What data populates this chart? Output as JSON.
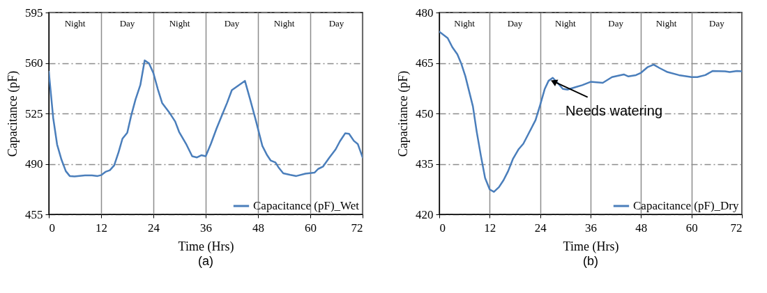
{
  "chart_data": [
    {
      "type": "line",
      "title": "(a)",
      "xlabel": "Time (Hrs)",
      "ylabel": "Capacitance (pF)",
      "xlim": [
        0,
        72
      ],
      "xticks": [
        0,
        12,
        24,
        36,
        48,
        60,
        72
      ],
      "ylim": [
        455,
        595
      ],
      "yticks": [
        455,
        490,
        525,
        560,
        595
      ],
      "grid": true,
      "legend": "bottom right",
      "annotations": [
        "Night",
        "Day",
        "Night",
        "Day",
        "Night",
        "Day"
      ],
      "series": [
        {
          "name": "Capacitance (pF)_Wet",
          "color": "#4a7ebb",
          "x": [
            0,
            1,
            1.9,
            2.9,
            3.9,
            4.8,
            5.9,
            8.3,
            9.9,
            11.2,
            12,
            13,
            14,
            15,
            16,
            16.9,
            18,
            18.9,
            19.9,
            21,
            22,
            23,
            24,
            25,
            26,
            27.6,
            29,
            29.9,
            31.6,
            32.9,
            34,
            35,
            36,
            37.2,
            38.5,
            39.9,
            40.9,
            42,
            45,
            46.2,
            47.5,
            49,
            50.1,
            50.9,
            52,
            52.8,
            53.8,
            55.4,
            56.8,
            58.9,
            61,
            61.8,
            62.9,
            64.4,
            65.8,
            66.8,
            68,
            68.9,
            70,
            70.9,
            72
          ],
          "values": [
            554,
            522,
            503.5,
            493,
            485,
            481.6,
            481.3,
            482,
            482,
            481.6,
            482.2,
            484.5,
            485.6,
            489,
            498,
            507.5,
            511.6,
            523.5,
            534.7,
            544.7,
            561.8,
            559.7,
            553,
            542,
            532.3,
            525.9,
            519.4,
            512.2,
            503.3,
            495.3,
            494.5,
            496,
            495.3,
            504,
            514.6,
            525,
            532.3,
            541.2,
            547.6,
            534.7,
            520.2,
            502.5,
            496,
            492.4,
            491,
            487.2,
            483.5,
            482.4,
            481.6,
            483.2,
            484,
            486.5,
            488.1,
            494.5,
            500,
            505.7,
            511.2,
            510.9,
            506,
            503.8,
            494.5
          ]
        }
      ]
    },
    {
      "type": "line",
      "title": "(b)",
      "xlabel": "Time (Hrs)",
      "ylabel": "Capacitance (pF)",
      "xlim": [
        0,
        72
      ],
      "xticks": [
        0,
        12,
        24,
        36,
        48,
        60,
        72
      ],
      "ylim": [
        420,
        480
      ],
      "yticks": [
        420,
        435,
        450,
        465,
        480
      ],
      "grid": true,
      "legend": "bottom right",
      "annotations": [
        "Night",
        "Day",
        "Night",
        "Day",
        "Night",
        "Day",
        {
          "text": "Needs watering",
          "x": 26.8,
          "y": 459.8
        }
      ],
      "series": [
        {
          "name": "Capacitance (pF)_Dry",
          "color": "#4a7ebb",
          "x": [
            0,
            2,
            3.1,
            4.3,
            5.2,
            6.2,
            7.1,
            8,
            8.9,
            9.9,
            10.9,
            12,
            13,
            14.2,
            15.3,
            16.4,
            17.5,
            18.9,
            20,
            21.2,
            22.9,
            24,
            25.1,
            26,
            27,
            28.2,
            29.4,
            30.5,
            32.4,
            34,
            36,
            38.9,
            41.1,
            43.9,
            45,
            46.8,
            48,
            49.6,
            51,
            52.4,
            54.3,
            57,
            60,
            61.4,
            63.3,
            65,
            68,
            69.1,
            70.8,
            72
          ],
          "values": [
            474.3,
            472.4,
            469.7,
            467.6,
            464.9,
            461.1,
            456.6,
            452.1,
            444.6,
            437.4,
            430.8,
            427.4,
            426.7,
            428.1,
            430.2,
            432.9,
            436.4,
            439.4,
            441,
            443.9,
            448,
            452.5,
            457.3,
            459.7,
            460.6,
            459,
            457.3,
            457.1,
            457.8,
            458.4,
            459.4,
            459.1,
            460.8,
            461.6,
            461,
            461.4,
            462.1,
            463.8,
            464.5,
            463.5,
            462.3,
            461.4,
            460.8,
            460.8,
            461.4,
            462.6,
            462.5,
            462.3,
            462.6,
            462.5
          ]
        }
      ]
    }
  ]
}
